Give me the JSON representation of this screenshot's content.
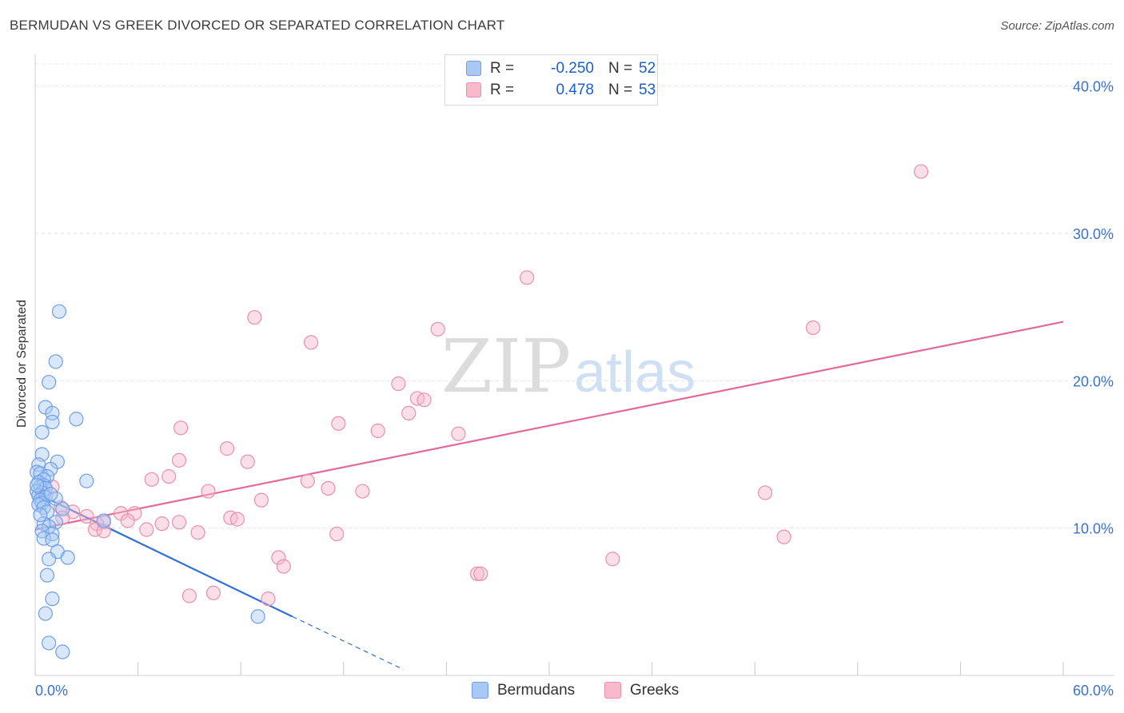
{
  "header": {
    "title": "BERMUDAN VS GREEK DIVORCED OR SEPARATED CORRELATION CHART",
    "source": "Source: ZipAtlas.com"
  },
  "watermark": {
    "zip": "ZIP",
    "atlas": "atlas"
  },
  "legend": {
    "rows": [
      {
        "r_label": "R =",
        "r_value": "-0.250",
        "n_label": "N =",
        "n_value": "52",
        "color": "#a9c9f5"
      },
      {
        "r_label": "R =",
        "r_value": "0.478",
        "n_label": "N =",
        "n_value": "53",
        "color": "#f7b9cb"
      }
    ]
  },
  "bottom_legend": {
    "bermudans": "Bermudans",
    "greeks": "Greeks"
  },
  "colors": {
    "blue_fill": "#a9c9f5",
    "blue_stroke": "#6f9ee6",
    "blue_line": "#2f6fd6",
    "pink_fill": "#f7b9cb",
    "pink_stroke": "#eb8fac",
    "pink_line": "#e3699a",
    "tick_label": "#3a72c9",
    "grid": "#e3e3e3"
  },
  "chart_data": {
    "type": "scatter",
    "title": "BERMUDAN VS GREEK DIVORCED OR SEPARATED CORRELATION CHART",
    "xlabel": "",
    "ylabel": "Divorced or Separated",
    "xlim": [
      0,
      60
    ],
    "ylim": [
      0,
      41.5
    ],
    "x_tick_labels": [
      "0.0%",
      "60.0%"
    ],
    "y_ticks": [
      10,
      20,
      30,
      40
    ],
    "y_tick_labels": [
      "10.0%",
      "20.0%",
      "30.0%",
      "40.0%"
    ],
    "series": [
      {
        "name": "Bermudans",
        "r": -0.25,
        "n": 52,
        "trend": {
          "x0": 0,
          "y0": 12.4,
          "x1": 15,
          "y1": 4.0,
          "dash_to_x": 21.5,
          "dash_to_y": 0.4
        },
        "points": [
          [
            1.4,
            24.7
          ],
          [
            1.2,
            21.3
          ],
          [
            0.8,
            19.9
          ],
          [
            0.6,
            18.2
          ],
          [
            1.0,
            17.8
          ],
          [
            2.4,
            17.4
          ],
          [
            1.0,
            17.2
          ],
          [
            0.4,
            16.5
          ],
          [
            0.4,
            15.0
          ],
          [
            1.3,
            14.5
          ],
          [
            0.2,
            14.3
          ],
          [
            0.9,
            14.0
          ],
          [
            0.1,
            13.8
          ],
          [
            0.3,
            13.7
          ],
          [
            0.7,
            13.5
          ],
          [
            0.5,
            13.3
          ],
          [
            3.0,
            13.2
          ],
          [
            0.2,
            13.1
          ],
          [
            0.5,
            12.9
          ],
          [
            0.3,
            12.8
          ],
          [
            0.6,
            12.7
          ],
          [
            0.1,
            12.5
          ],
          [
            0.4,
            12.4
          ],
          [
            0.2,
            12.2
          ],
          [
            0.6,
            12.1
          ],
          [
            1.2,
            12.0
          ],
          [
            0.3,
            11.9
          ],
          [
            0.4,
            11.7
          ],
          [
            0.2,
            11.6
          ],
          [
            0.5,
            11.4
          ],
          [
            1.6,
            11.3
          ],
          [
            0.7,
            11.1
          ],
          [
            4.0,
            10.5
          ],
          [
            1.2,
            10.4
          ],
          [
            0.5,
            10.3
          ],
          [
            0.8,
            10.1
          ],
          [
            0.4,
            9.8
          ],
          [
            1.0,
            9.6
          ],
          [
            0.5,
            9.3
          ],
          [
            1.0,
            9.2
          ],
          [
            1.3,
            8.4
          ],
          [
            1.9,
            8.0
          ],
          [
            0.8,
            7.9
          ],
          [
            0.7,
            6.8
          ],
          [
            1.0,
            5.2
          ],
          [
            0.6,
            4.2
          ],
          [
            0.8,
            2.2
          ],
          [
            1.6,
            1.6
          ],
          [
            13.0,
            4.0
          ],
          [
            0.1,
            12.9
          ],
          [
            0.9,
            12.3
          ],
          [
            0.3,
            10.9
          ]
        ]
      },
      {
        "name": "Greeks",
        "r": 0.478,
        "n": 53,
        "trend": {
          "x0": 0,
          "y0": 9.9,
          "x1": 60,
          "y1": 24.0
        },
        "points": [
          [
            51.7,
            34.2
          ],
          [
            28.7,
            27.0
          ],
          [
            12.8,
            24.3
          ],
          [
            23.5,
            23.5
          ],
          [
            45.4,
            23.6
          ],
          [
            16.1,
            22.6
          ],
          [
            21.2,
            19.8
          ],
          [
            22.3,
            18.8
          ],
          [
            22.7,
            18.7
          ],
          [
            21.8,
            17.8
          ],
          [
            17.7,
            17.1
          ],
          [
            8.5,
            16.8
          ],
          [
            20.0,
            16.6
          ],
          [
            24.7,
            16.4
          ],
          [
            11.2,
            15.4
          ],
          [
            12.4,
            14.5
          ],
          [
            8.4,
            14.6
          ],
          [
            7.8,
            13.5
          ],
          [
            6.8,
            13.3
          ],
          [
            15.9,
            13.2
          ],
          [
            17.1,
            12.7
          ],
          [
            10.1,
            12.5
          ],
          [
            19.1,
            12.5
          ],
          [
            42.6,
            12.4
          ],
          [
            13.2,
            11.9
          ],
          [
            1.0,
            12.8
          ],
          [
            1.5,
            11.4
          ],
          [
            2.2,
            11.1
          ],
          [
            5.0,
            11.0
          ],
          [
            5.8,
            11.0
          ],
          [
            3.0,
            10.8
          ],
          [
            1.6,
            10.7
          ],
          [
            11.4,
            10.7
          ],
          [
            11.8,
            10.6
          ],
          [
            4.0,
            10.4
          ],
          [
            5.4,
            10.5
          ],
          [
            3.6,
            10.3
          ],
          [
            7.4,
            10.3
          ],
          [
            8.4,
            10.4
          ],
          [
            6.5,
            9.9
          ],
          [
            3.5,
            9.9
          ],
          [
            4.0,
            9.8
          ],
          [
            9.5,
            9.7
          ],
          [
            17.6,
            9.6
          ],
          [
            43.7,
            9.4
          ],
          [
            14.2,
            8.0
          ],
          [
            33.7,
            7.9
          ],
          [
            14.5,
            7.4
          ],
          [
            25.8,
            6.9
          ],
          [
            26.0,
            6.9
          ],
          [
            9.0,
            5.4
          ],
          [
            10.4,
            5.6
          ],
          [
            13.6,
            5.2
          ]
        ]
      }
    ]
  }
}
